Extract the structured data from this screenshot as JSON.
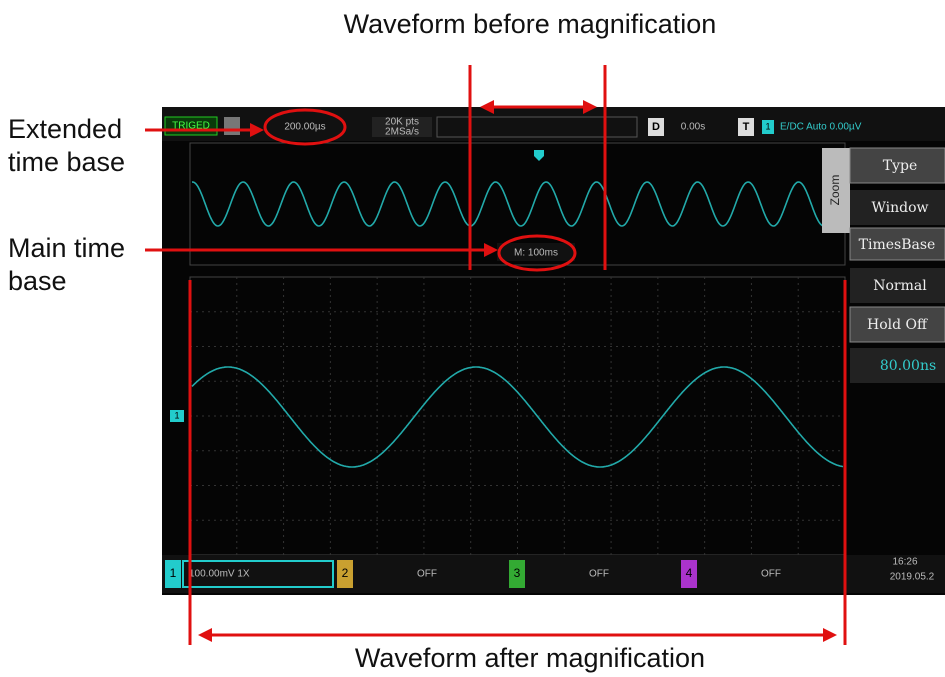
{
  "annotations": {
    "before": "Waveform before magnification",
    "extended": [
      "Extended",
      "time base"
    ],
    "main": [
      "Main time",
      "base"
    ],
    "after": "Waveform after magnification"
  },
  "top_bar": {
    "trig": "TRIGED",
    "timebase": "200.00µs",
    "points": "20K pts",
    "rate": "2MSa/s",
    "d_label": "D",
    "delay": "0.00s",
    "t_label": "T",
    "trig_ch": "1",
    "trig_info": "E/DC Auto 0.00µV"
  },
  "zoom_window": {
    "main_timebase": "M: 100ms"
  },
  "menu": {
    "title": "Zoom",
    "items": [
      "Type",
      "Window",
      "TimesBase",
      "Normal",
      "Hold Off",
      "80.00ns"
    ]
  },
  "channel_marker": "1",
  "status_bar": {
    "channels": [
      {
        "number": "1",
        "setting": "100.00mV 1X"
      },
      {
        "number": "2",
        "setting": "OFF"
      },
      {
        "number": "3",
        "setting": "OFF"
      },
      {
        "number": "4",
        "setting": "OFF"
      }
    ],
    "time": "16:26",
    "date": "2019.05.2"
  }
}
